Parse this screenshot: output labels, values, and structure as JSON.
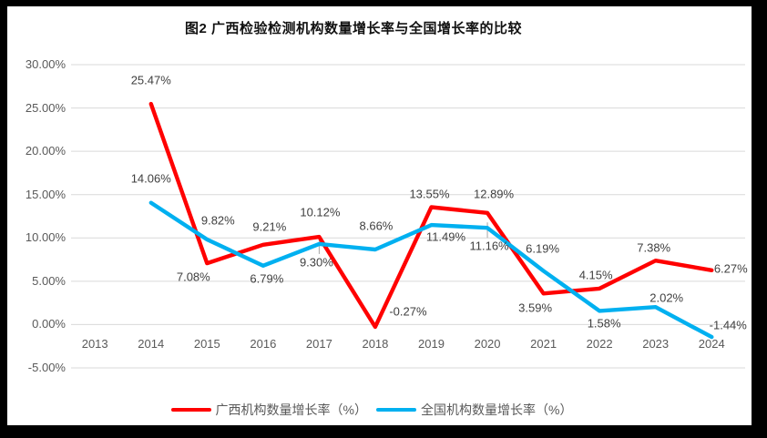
{
  "chart_data": {
    "type": "line",
    "title": "图2 广西检验检测机构数量增长率与全国增长率的比较",
    "categories": [
      "2013",
      "2014",
      "2015",
      "2016",
      "2017",
      "2018",
      "2019",
      "2020",
      "2021",
      "2022",
      "2023",
      "2024"
    ],
    "series": [
      {
        "name": "广西机构数量增长率（%）",
        "key": "guangxi",
        "color": "#FF0000",
        "values": [
          null,
          25.47,
          7.08,
          9.21,
          10.12,
          -0.27,
          13.55,
          12.89,
          3.59,
          4.15,
          7.38,
          6.27
        ],
        "labels": [
          null,
          "25.47%",
          "7.08%",
          "9.21%",
          "10.12%",
          "-0.27%",
          "13.55%",
          "12.89%",
          "3.59%",
          "4.15%",
          "7.38%",
          "6.27%"
        ],
        "label_offsets": [
          null,
          [
            0,
            -26
          ],
          [
            -15,
            15
          ],
          [
            7,
            -20
          ],
          [
            1,
            -27
          ],
          [
            36,
            -17
          ],
          [
            -2,
            -15
          ],
          [
            7,
            -21
          ],
          [
            -9,
            16
          ],
          [
            -4,
            -15
          ],
          [
            -2,
            -14
          ],
          [
            21,
            -2
          ]
        ]
      },
      {
        "name": "全国机构数量增长率（%）",
        "key": "national",
        "color": "#00B0F0",
        "values": [
          null,
          14.06,
          9.82,
          6.79,
          9.3,
          8.66,
          11.49,
          11.16,
          6.19,
          1.58,
          2.02,
          -1.44
        ],
        "labels": [
          null,
          "14.06%",
          "9.82%",
          "6.79%",
          "9.30%",
          "8.66%",
          "11.49%",
          "11.16%",
          "6.19%",
          "1.58%",
          "2.02%",
          "-1.44%"
        ],
        "label_offsets": [
          null,
          [
            0,
            -27
          ],
          [
            12,
            -21
          ],
          [
            4,
            14
          ],
          [
            -3,
            20
          ],
          [
            1,
            -26
          ],
          [
            16,
            13
          ],
          [
            2,
            20
          ],
          [
            -1,
            -25
          ],
          [
            5,
            14
          ],
          [
            12,
            -10
          ],
          [
            18,
            -13
          ]
        ]
      }
    ],
    "y_ticks": [
      "30.00%",
      "25.00%",
      "20.00%",
      "15.00%",
      "10.00%",
      "5.00%",
      "0.00%",
      "-5.00%"
    ],
    "ylim": [
      -5,
      30
    ],
    "y_step": 5,
    "grid": true,
    "legend_position": "bottom",
    "leader_lines": [
      {
        "series": 1,
        "index": 4
      },
      {
        "series": 1,
        "index": 7
      }
    ],
    "colors": {
      "gridline": "#D9D9D9",
      "leader": "#A6A6A6",
      "axis_text": "#595959",
      "data_label_text": "#3f3f3f",
      "frame": "#000000",
      "background": "#FFFFFF"
    }
  }
}
